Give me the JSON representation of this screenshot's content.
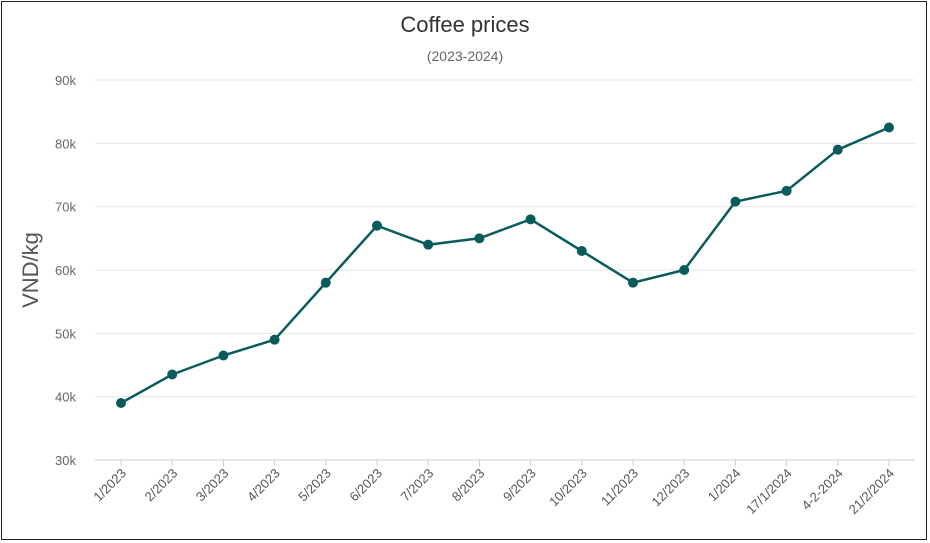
{
  "chart_data": {
    "type": "line",
    "title": "Coffee prices",
    "subtitle": "(2023-2024)",
    "xlabel": "",
    "ylabel": "VND/kg",
    "ylim": [
      30000,
      90000
    ],
    "yticks": [
      {
        "value": 30000,
        "label": "30k"
      },
      {
        "value": 40000,
        "label": "40k"
      },
      {
        "value": 50000,
        "label": "50k"
      },
      {
        "value": 60000,
        "label": "60k"
      },
      {
        "value": 70000,
        "label": "70k"
      },
      {
        "value": 80000,
        "label": "80k"
      },
      {
        "value": 90000,
        "label": "90k"
      }
    ],
    "grid": true,
    "legend": "none",
    "categories": [
      "1/2023",
      "2/2023",
      "3/2023",
      "4/2023",
      "5/2023",
      "6/2023",
      "7/2023",
      "8/2023",
      "9/2023",
      "10/2023",
      "11/2023",
      "12/2023",
      "1/2024",
      "17/1/2024",
      "4-2-2024",
      "21/2/2024"
    ],
    "series": [
      {
        "color": "#0a5c5c",
        "values": [
          39000,
          43500,
          46500,
          49000,
          58000,
          67000,
          64000,
          65000,
          68000,
          63000,
          58000,
          60000,
          70800,
          72500,
          79000,
          82500
        ]
      }
    ]
  }
}
